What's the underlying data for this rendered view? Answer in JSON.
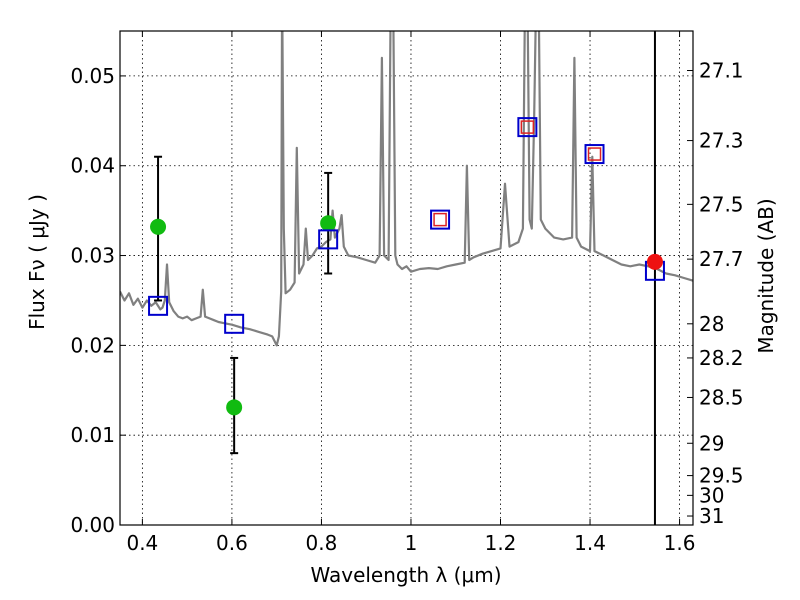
{
  "chart_data": {
    "type": "scatter",
    "title": "",
    "xlabel": "Wavelength  λ (μm)",
    "ylabel": "Flux  Fν  ( μJy )",
    "ylabel_right": "Magnitude (AB)",
    "xlim": [
      0.35,
      1.63
    ],
    "ylim": [
      0.0,
      0.055
    ],
    "grid": true,
    "x_ticks": [
      0.4,
      0.6,
      0.8,
      1.0,
      1.2,
      1.4,
      1.6
    ],
    "x_tick_labels": [
      "0.4",
      "0.6",
      "0.8",
      "1",
      "1.2",
      "1.4",
      "1.6"
    ],
    "y_ticks": [
      0.0,
      0.01,
      0.02,
      0.03,
      0.04,
      0.05
    ],
    "y_tick_labels": [
      "0.00",
      "0.01",
      "0.02",
      "0.03",
      "0.04",
      "0.05"
    ],
    "right_ticks": [
      {
        "label": "27.1",
        "flux": 0.0506
      },
      {
        "label": "27.3",
        "flux": 0.0428
      },
      {
        "label": "27.5",
        "flux": 0.0357
      },
      {
        "label": "27.7",
        "flux": 0.0296
      },
      {
        "label": "28",
        "flux": 0.0224
      },
      {
        "label": "28.2",
        "flux": 0.0186
      },
      {
        "label": "28.5",
        "flux": 0.0142
      },
      {
        "label": "29",
        "flux": 0.0091
      },
      {
        "label": "29.5",
        "flux": 0.0055
      },
      {
        "label": "30",
        "flux": 0.0033
      },
      {
        "label": "31",
        "flux": 0.001
      }
    ],
    "vertical_line_x": 1.545,
    "series": [
      {
        "type": "line",
        "color": "#808080",
        "points": [
          [
            0.35,
            0.026
          ],
          [
            0.36,
            0.025
          ],
          [
            0.37,
            0.0258
          ],
          [
            0.38,
            0.0245
          ],
          [
            0.39,
            0.0252
          ],
          [
            0.4,
            0.0242
          ],
          [
            0.41,
            0.025
          ],
          [
            0.42,
            0.0244
          ],
          [
            0.43,
            0.0248
          ],
          [
            0.44,
            0.024
          ],
          [
            0.445,
            0.0242
          ],
          [
            0.45,
            0.025
          ],
          [
            0.455,
            0.029
          ],
          [
            0.46,
            0.0248
          ],
          [
            0.47,
            0.0238
          ],
          [
            0.48,
            0.0232
          ],
          [
            0.49,
            0.023
          ],
          [
            0.5,
            0.0232
          ],
          [
            0.51,
            0.0228
          ],
          [
            0.52,
            0.023
          ],
          [
            0.53,
            0.0232
          ],
          [
            0.535,
            0.0262
          ],
          [
            0.54,
            0.0232
          ],
          [
            0.55,
            0.023
          ],
          [
            0.56,
            0.0228
          ],
          [
            0.57,
            0.0226
          ],
          [
            0.58,
            0.0225
          ],
          [
            0.59,
            0.0224
          ],
          [
            0.6,
            0.0223
          ],
          [
            0.62,
            0.022
          ],
          [
            0.64,
            0.0218
          ],
          [
            0.66,
            0.0215
          ],
          [
            0.68,
            0.0212
          ],
          [
            0.69,
            0.021
          ],
          [
            0.7,
            0.02
          ],
          [
            0.705,
            0.021
          ],
          [
            0.71,
            0.026
          ],
          [
            0.712,
            0.06
          ],
          [
            0.716,
            0.033
          ],
          [
            0.72,
            0.0258
          ],
          [
            0.73,
            0.0262
          ],
          [
            0.74,
            0.027
          ],
          [
            0.745,
            0.042
          ],
          [
            0.75,
            0.028
          ],
          [
            0.76,
            0.029
          ],
          [
            0.765,
            0.033
          ],
          [
            0.77,
            0.0295
          ],
          [
            0.78,
            0.03
          ],
          [
            0.79,
            0.0308
          ],
          [
            0.8,
            0.031
          ],
          [
            0.81,
            0.0315
          ],
          [
            0.82,
            0.0318
          ],
          [
            0.825,
            0.035
          ],
          [
            0.83,
            0.032
          ],
          [
            0.84,
            0.033
          ],
          [
            0.845,
            0.0345
          ],
          [
            0.85,
            0.031
          ],
          [
            0.86,
            0.03
          ],
          [
            0.88,
            0.0298
          ],
          [
            0.9,
            0.0295
          ],
          [
            0.92,
            0.0292
          ],
          [
            0.93,
            0.03
          ],
          [
            0.935,
            0.052
          ],
          [
            0.94,
            0.03
          ],
          [
            0.95,
            0.0295
          ],
          [
            0.955,
            0.06
          ],
          [
            0.96,
            0.06
          ],
          [
            0.965,
            0.03
          ],
          [
            0.97,
            0.029
          ],
          [
            0.98,
            0.0285
          ],
          [
            0.99,
            0.0288
          ],
          [
            1.0,
            0.0282
          ],
          [
            1.02,
            0.0285
          ],
          [
            1.04,
            0.0286
          ],
          [
            1.06,
            0.0285
          ],
          [
            1.08,
            0.0288
          ],
          [
            1.1,
            0.029
          ],
          [
            1.12,
            0.0292
          ],
          [
            1.125,
            0.04
          ],
          [
            1.13,
            0.0295
          ],
          [
            1.14,
            0.0298
          ],
          [
            1.16,
            0.0302
          ],
          [
            1.18,
            0.0305
          ],
          [
            1.2,
            0.0308
          ],
          [
            1.21,
            0.038
          ],
          [
            1.22,
            0.031
          ],
          [
            1.24,
            0.0315
          ],
          [
            1.25,
            0.033
          ],
          [
            1.255,
            0.06
          ],
          [
            1.26,
            0.06
          ],
          [
            1.265,
            0.034
          ],
          [
            1.27,
            0.033
          ],
          [
            1.275,
            0.045
          ],
          [
            1.28,
            0.06
          ],
          [
            1.285,
            0.06
          ],
          [
            1.29,
            0.034
          ],
          [
            1.3,
            0.033
          ],
          [
            1.32,
            0.032
          ],
          [
            1.34,
            0.0318
          ],
          [
            1.36,
            0.032
          ],
          [
            1.365,
            0.052
          ],
          [
            1.37,
            0.032
          ],
          [
            1.38,
            0.031
          ],
          [
            1.4,
            0.0305
          ],
          [
            1.405,
            0.041
          ],
          [
            1.41,
            0.0305
          ],
          [
            1.43,
            0.03
          ],
          [
            1.45,
            0.0295
          ],
          [
            1.47,
            0.029
          ],
          [
            1.49,
            0.0288
          ],
          [
            1.51,
            0.029
          ],
          [
            1.53,
            0.0288
          ],
          [
            1.55,
            0.0285
          ],
          [
            1.57,
            0.028
          ],
          [
            1.59,
            0.0278
          ],
          [
            1.61,
            0.0275
          ],
          [
            1.63,
            0.0272
          ]
        ]
      },
      {
        "type": "scatter",
        "marker": "circle",
        "color": "#11bb11",
        "points": [
          {
            "x": 0.435,
            "y": 0.0332,
            "err_low": 0.025,
            "err_high": 0.041
          },
          {
            "x": 0.605,
            "y": 0.0131,
            "err_low": 0.008,
            "err_high": 0.0186
          },
          {
            "x": 0.815,
            "y": 0.0336,
            "err_low": 0.028,
            "err_high": 0.0392
          }
        ]
      },
      {
        "type": "scatter",
        "marker": "open-square",
        "color": "#0000cc",
        "points": [
          {
            "x": 0.435,
            "y": 0.0244
          },
          {
            "x": 0.605,
            "y": 0.0224
          },
          {
            "x": 0.815,
            "y": 0.0318
          },
          {
            "x": 1.065,
            "y": 0.034
          },
          {
            "x": 1.26,
            "y": 0.0443
          },
          {
            "x": 1.41,
            "y": 0.0413
          },
          {
            "x": 1.545,
            "y": 0.0283
          }
        ]
      },
      {
        "type": "scatter",
        "marker": "open-square-small",
        "color": "#dd2222",
        "points": [
          {
            "x": 1.065,
            "y": 0.034
          },
          {
            "x": 1.26,
            "y": 0.0443
          },
          {
            "x": 1.41,
            "y": 0.0413
          }
        ]
      },
      {
        "type": "scatter",
        "marker": "circle",
        "color": "#ee1111",
        "points": [
          {
            "x": 1.545,
            "y": 0.0293
          }
        ]
      }
    ]
  }
}
